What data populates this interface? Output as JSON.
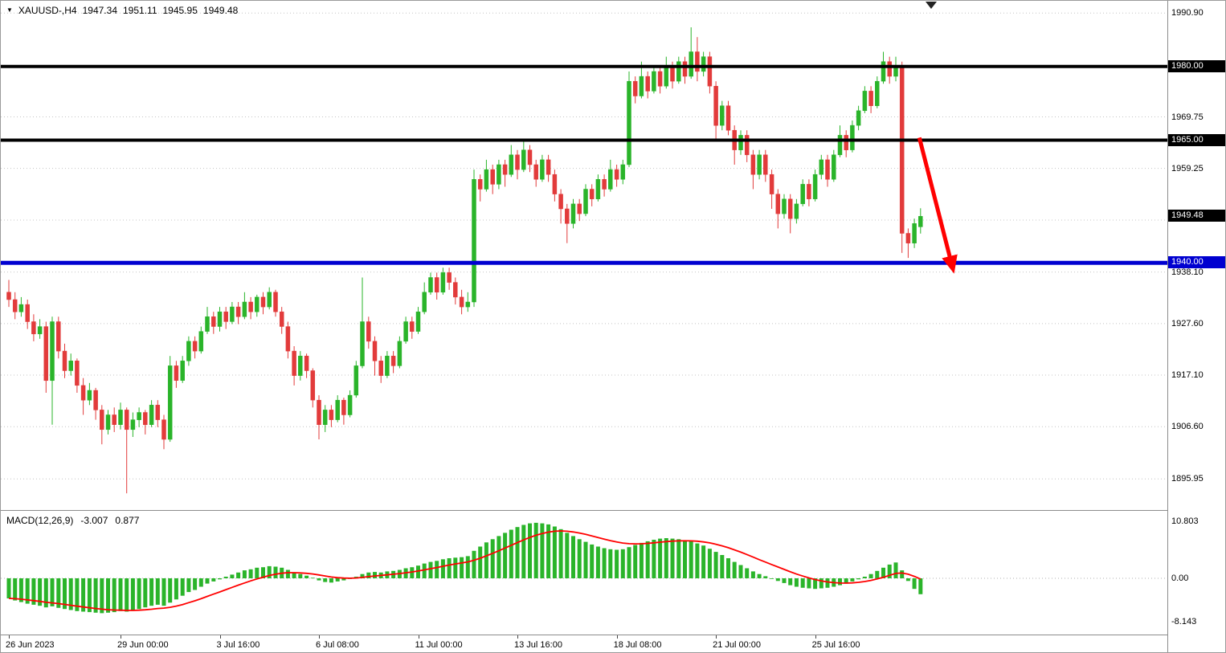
{
  "icons": {
    "dropdown": "▼"
  },
  "header": {
    "title": "XAUUSD-,H4",
    "open": "1947.34",
    "high": "1951.11",
    "low": "1945.95",
    "close": "1949.48"
  },
  "colors": {
    "bull": "#2ab42a",
    "bear": "#e23b3b",
    "grid": "#c4c4c4",
    "hline_black": "#000000",
    "hline_blue": "#0000d0",
    "arrow": "#ff0000",
    "macd_hist": "#2ab42a",
    "macd_signal": "#ff0000",
    "axis_box": "#000000",
    "axis_box_blue": "#0000d0"
  },
  "price_axis": {
    "plain": [
      {
        "text": "1990.90",
        "value": 1990.9
      },
      {
        "text": "1969.75",
        "value": 1969.75
      },
      {
        "text": "1959.25",
        "value": 1959.25
      },
      {
        "text": "1938.10",
        "value": 1938.1
      },
      {
        "text": "1927.60",
        "value": 1927.6
      },
      {
        "text": "1917.10",
        "value": 1917.1
      },
      {
        "text": "1906.60",
        "value": 1906.6
      },
      {
        "text": "1895.95",
        "value": 1895.95
      }
    ],
    "boxed": [
      {
        "text": "1980.00",
        "value": 1980.0,
        "style": "black"
      },
      {
        "text": "1965.00",
        "value": 1965.0,
        "style": "black"
      },
      {
        "text": "1949.48",
        "value": 1949.48,
        "style": "black"
      },
      {
        "text": "1940.00",
        "value": 1940.0,
        "style": "blue"
      }
    ]
  },
  "time_axis": {
    "labels": [
      {
        "index": 0,
        "text": "26 Jun 2023"
      },
      {
        "index": 18,
        "text": "29 Jun 00:00"
      },
      {
        "index": 34,
        "text": "3 Jul 16:00"
      },
      {
        "index": 50,
        "text": "6 Jul 08:00"
      },
      {
        "index": 66,
        "text": "11 Jul 00:00"
      },
      {
        "index": 82,
        "text": "13 Jul 16:00"
      },
      {
        "index": 98,
        "text": "18 Jul 08:00"
      },
      {
        "index": 114,
        "text": "21 Jul 00:00"
      },
      {
        "index": 130,
        "text": "25 Jul 16:00"
      }
    ]
  },
  "macd_panel": {
    "name": "MACD(12,26,9)",
    "main_value": "-3.007",
    "signal_value": "0.877",
    "axis_labels": [
      {
        "text": "10.803",
        "value": 10.803
      },
      {
        "text": "0.00",
        "value": 0
      },
      {
        "text": "-8.143",
        "value": -8.143
      }
    ]
  },
  "chart_data": [
    {
      "type": "candlestick",
      "symbol": "XAUUSD-",
      "timeframe": "H4",
      "y_axis": {
        "range": [
          1889.6,
          1993.4
        ],
        "grid_prices": [
          1990.9,
          1969.75,
          1959.25,
          1948.7,
          1938.1,
          1927.6,
          1917.1,
          1906.6,
          1895.95
        ]
      },
      "hlines": [
        {
          "value": 1980.0,
          "color": "#000000",
          "width": 4
        },
        {
          "value": 1965.0,
          "color": "#000000",
          "width": 4
        },
        {
          "value": 1940.0,
          "color": "#0000d0",
          "width": 5
        }
      ],
      "arrow": {
        "from": {
          "index": 146.8,
          "price": 1965.5
        },
        "to": {
          "index": 152.2,
          "price": 1938.8
        },
        "color": "#ff0000",
        "width": 5
      },
      "candles": [
        [
          1934,
          1936.5,
          1931,
          1932.5
        ],
        [
          1932.5,
          1934,
          1928.5,
          1930
        ],
        [
          1930,
          1933,
          1929,
          1931.5
        ],
        [
          1931.5,
          1932.5,
          1926.5,
          1928
        ],
        [
          1928,
          1929.5,
          1924,
          1925.5
        ],
        [
          1925.5,
          1928.5,
          1924.5,
          1927
        ],
        [
          1927,
          1928,
          1913.5,
          1916
        ],
        [
          1916,
          1929,
          1907,
          1928
        ],
        [
          1928,
          1929,
          1920.5,
          1922
        ],
        [
          1922,
          1923.5,
          1916.5,
          1918
        ],
        [
          1918,
          1921.5,
          1917,
          1920
        ],
        [
          1920,
          1920.5,
          1913.5,
          1915
        ],
        [
          1915,
          1916.5,
          1909,
          1912
        ],
        [
          1912,
          1915.5,
          1911,
          1914
        ],
        [
          1914,
          1914.5,
          1908,
          1910
        ],
        [
          1910,
          1911,
          1903,
          1906
        ],
        [
          1906,
          1910,
          1905,
          1909
        ],
        [
          1909,
          1910.5,
          1905.5,
          1907
        ],
        [
          1907,
          1911.5,
          1906,
          1910
        ],
        [
          1910,
          1910.5,
          1893,
          1906
        ],
        [
          1906,
          1909.5,
          1904.5,
          1908
        ],
        [
          1908,
          1910.5,
          1906.5,
          1909.5
        ],
        [
          1909.5,
          1910,
          1905,
          1907
        ],
        [
          1907,
          1912,
          1906.5,
          1911
        ],
        [
          1911,
          1912,
          1906.5,
          1908
        ],
        [
          1908,
          1909,
          1902,
          1904
        ],
        [
          1904,
          1921,
          1903.5,
          1919
        ],
        [
          1919,
          1920,
          1914.5,
          1916
        ],
        [
          1916,
          1921,
          1915.5,
          1920
        ],
        [
          1920,
          1925,
          1919,
          1924
        ],
        [
          1924,
          1925,
          1920.5,
          1922
        ],
        [
          1922,
          1927,
          1921.5,
          1926
        ],
        [
          1926,
          1931,
          1925.5,
          1929
        ],
        [
          1929,
          1930,
          1925.5,
          1927
        ],
        [
          1927,
          1931,
          1926,
          1930
        ],
        [
          1930,
          1931,
          1926.5,
          1928
        ],
        [
          1928,
          1932,
          1927.5,
          1931
        ],
        [
          1931,
          1932,
          1927.5,
          1929
        ],
        [
          1929,
          1934,
          1928.5,
          1932
        ],
        [
          1932,
          1933,
          1928.5,
          1930
        ],
        [
          1930,
          1933.5,
          1929,
          1933
        ],
        [
          1933,
          1934,
          1929.5,
          1931
        ],
        [
          1931,
          1935,
          1930.5,
          1934
        ],
        [
          1934,
          1934.5,
          1929,
          1930
        ],
        [
          1930,
          1931,
          1925.5,
          1927
        ],
        [
          1927,
          1928,
          1920.5,
          1922
        ],
        [
          1922,
          1923,
          1915,
          1917
        ],
        [
          1917,
          1922,
          1916,
          1921
        ],
        [
          1921,
          1921.5,
          1916.5,
          1918
        ],
        [
          1918,
          1918.5,
          1910.5,
          1912
        ],
        [
          1912,
          1913,
          1904,
          1907
        ],
        [
          1907,
          1911,
          1905.5,
          1910
        ],
        [
          1910,
          1911,
          1906.5,
          1908
        ],
        [
          1908,
          1913,
          1907.5,
          1912
        ],
        [
          1912,
          1912.5,
          1907,
          1909
        ],
        [
          1909,
          1914,
          1908.5,
          1913
        ],
        [
          1913,
          1920,
          1912.5,
          1919
        ],
        [
          1919,
          1937,
          1918.5,
          1928
        ],
        [
          1928,
          1929,
          1922.5,
          1924
        ],
        [
          1924,
          1925,
          1917,
          1920
        ],
        [
          1920,
          1921,
          1915.5,
          1917
        ],
        [
          1917,
          1922,
          1916.5,
          1921
        ],
        [
          1921,
          1922,
          1917.5,
          1919
        ],
        [
          1919,
          1925,
          1918.5,
          1924
        ],
        [
          1924,
          1929,
          1923.5,
          1928
        ],
        [
          1928,
          1929,
          1924.5,
          1926
        ],
        [
          1926,
          1931,
          1925.5,
          1930
        ],
        [
          1930,
          1936,
          1929.5,
          1934
        ],
        [
          1934,
          1938,
          1933.5,
          1937
        ],
        [
          1937,
          1938,
          1932.5,
          1934
        ],
        [
          1934,
          1939,
          1933.5,
          1938
        ],
        [
          1938,
          1939,
          1934.5,
          1936
        ],
        [
          1936,
          1937,
          1931.5,
          1933
        ],
        [
          1933,
          1934.5,
          1929.5,
          1931
        ],
        [
          1931,
          1934,
          1930,
          1932
        ],
        [
          1932,
          1959,
          1931,
          1957
        ],
        [
          1957,
          1958,
          1952.5,
          1955
        ],
        [
          1955,
          1961,
          1954.5,
          1959
        ],
        [
          1959,
          1960,
          1954,
          1956
        ],
        [
          1956,
          1961,
          1955,
          1960
        ],
        [
          1960,
          1961,
          1955.5,
          1958
        ],
        [
          1958,
          1964,
          1957.5,
          1962
        ],
        [
          1962,
          1963,
          1957,
          1959
        ],
        [
          1959,
          1965,
          1958.5,
          1963
        ],
        [
          1963,
          1964,
          1958.5,
          1960
        ],
        [
          1960,
          1961,
          1955.5,
          1957
        ],
        [
          1957,
          1962,
          1956.5,
          1961
        ],
        [
          1961,
          1962,
          1956.5,
          1958
        ],
        [
          1958,
          1959,
          1952.5,
          1954
        ],
        [
          1954,
          1955,
          1948,
          1951
        ],
        [
          1951,
          1952,
          1944,
          1948
        ],
        [
          1948,
          1953,
          1947,
          1952
        ],
        [
          1952,
          1953,
          1948.5,
          1950
        ],
        [
          1950,
          1956,
          1949.5,
          1955
        ],
        [
          1955,
          1956,
          1951.5,
          1953
        ],
        [
          1953,
          1958,
          1952.5,
          1957
        ],
        [
          1957,
          1958,
          1953.5,
          1955
        ],
        [
          1955,
          1961,
          1954.5,
          1959
        ],
        [
          1959,
          1960,
          1955.5,
          1957
        ],
        [
          1957,
          1961,
          1956,
          1960
        ],
        [
          1960,
          1979,
          1959.5,
          1977
        ],
        [
          1977,
          1978,
          1972.5,
          1974
        ],
        [
          1974,
          1981,
          1973.5,
          1978
        ],
        [
          1978,
          1979,
          1973.5,
          1975
        ],
        [
          1975,
          1980,
          1974.5,
          1979
        ],
        [
          1979,
          1980,
          1974.5,
          1976
        ],
        [
          1976,
          1982,
          1975.5,
          1980
        ],
        [
          1980,
          1981,
          1975.5,
          1977
        ],
        [
          1977,
          1982,
          1976.5,
          1981
        ],
        [
          1981,
          1982,
          1976.5,
          1978
        ],
        [
          1978,
          1988,
          1977.5,
          1983
        ],
        [
          1983,
          1986,
          1977,
          1979
        ],
        [
          1979,
          1983,
          1978,
          1982
        ],
        [
          1982,
          1983,
          1974.5,
          1976
        ],
        [
          1976,
          1977,
          1965,
          1968
        ],
        [
          1968,
          1973,
          1967,
          1972
        ],
        [
          1972,
          1973,
          1966,
          1967
        ],
        [
          1967,
          1968,
          1960,
          1963
        ],
        [
          1963,
          1967,
          1962,
          1966
        ],
        [
          1966,
          1967,
          1960.5,
          1962
        ],
        [
          1962,
          1963,
          1955,
          1958
        ],
        [
          1958,
          1963,
          1957,
          1962
        ],
        [
          1962,
          1963,
          1956.5,
          1958
        ],
        [
          1958,
          1959,
          1951,
          1954
        ],
        [
          1954,
          1955,
          1947,
          1950
        ],
        [
          1950,
          1954,
          1949,
          1953
        ],
        [
          1953,
          1954,
          1946,
          1949
        ],
        [
          1949,
          1953,
          1948,
          1952
        ],
        [
          1952,
          1957,
          1951.5,
          1956
        ],
        [
          1956,
          1957,
          1951.5,
          1953
        ],
        [
          1953,
          1959,
          1952.5,
          1958
        ],
        [
          1958,
          1962,
          1957,
          1961
        ],
        [
          1961,
          1962,
          1955.5,
          1957
        ],
        [
          1957,
          1963,
          1956.5,
          1962
        ],
        [
          1962,
          1968,
          1961.5,
          1966
        ],
        [
          1966,
          1967,
          1961.5,
          1963
        ],
        [
          1963,
          1969,
          1962.5,
          1968
        ],
        [
          1968,
          1972,
          1967,
          1971
        ],
        [
          1971,
          1976,
          1970.5,
          1975
        ],
        [
          1975,
          1976,
          1970.5,
          1972
        ],
        [
          1972,
          1978,
          1971.5,
          1977
        ],
        [
          1977,
          1983,
          1976.5,
          1981
        ],
        [
          1981,
          1982,
          1976.5,
          1978
        ],
        [
          1978,
          1982,
          1977,
          1980
        ],
        [
          1980,
          1981,
          1942,
          1946
        ],
        [
          1946,
          1947,
          1941,
          1944
        ],
        [
          1944,
          1949,
          1943,
          1948
        ],
        [
          1947.34,
          1951.11,
          1945.95,
          1949.48
        ]
      ]
    },
    {
      "type": "bar",
      "name": "MACD(12,26,9)",
      "ylim": [
        -8.143,
        10.803
      ],
      "last_main": -3.007,
      "last_signal": 0.877,
      "hist_color": "#2ab42a",
      "signal_color": "#ff0000",
      "values": [
        -3.8,
        -4.2,
        -4.5,
        -4.8,
        -5.0,
        -5.2,
        -5.5,
        -5.3,
        -5.6,
        -5.8,
        -6.0,
        -6.2,
        -6.3,
        -6.4,
        -6.5,
        -6.6,
        -6.5,
        -6.4,
        -6.2,
        -6.3,
        -6.1,
        -5.8,
        -5.5,
        -5.2,
        -5.0,
        -5.2,
        -4.6,
        -4.0,
        -3.3,
        -2.6,
        -2.2,
        -1.6,
        -1.0,
        -0.6,
        -0.2,
        0.3,
        0.7,
        1.1,
        1.5,
        1.7,
        2.0,
        2.1,
        2.3,
        2.2,
        2.0,
        1.6,
        1.1,
        0.8,
        0.5,
        0.1,
        -0.4,
        -0.7,
        -0.8,
        -0.6,
        -0.4,
        -0.1,
        0.3,
        0.8,
        1.1,
        1.2,
        1.1,
        1.3,
        1.4,
        1.6,
        1.9,
        2.1,
        2.4,
        2.8,
        3.1,
        3.3,
        3.6,
        3.8,
        3.9,
        4.0,
        4.2,
        5.2,
        6.0,
        6.8,
        7.4,
        8.0,
        8.6,
        9.2,
        9.7,
        10.1,
        10.4,
        10.5,
        10.4,
        10.2,
        9.8,
        9.3,
        8.6,
        8.0,
        7.4,
        6.9,
        6.4,
        6.0,
        5.7,
        5.5,
        5.4,
        5.5,
        5.9,
        6.3,
        6.7,
        7.0,
        7.3,
        7.5,
        7.6,
        7.5,
        7.4,
        7.2,
        7.0,
        6.6,
        6.2,
        5.6,
        5.0,
        4.4,
        3.8,
        3.1,
        2.5,
        1.9,
        1.3,
        0.8,
        0.4,
        0.0,
        -0.5,
        -0.9,
        -1.3,
        -1.6,
        -1.8,
        -1.9,
        -2.0,
        -1.9,
        -1.8,
        -1.6,
        -1.3,
        -1.0,
        -0.6,
        -0.2,
        0.3,
        0.8,
        1.4,
        2.0,
        2.6,
        3.0,
        1.5,
        -0.5,
        -2.0,
        -3.007
      ]
    }
  ]
}
